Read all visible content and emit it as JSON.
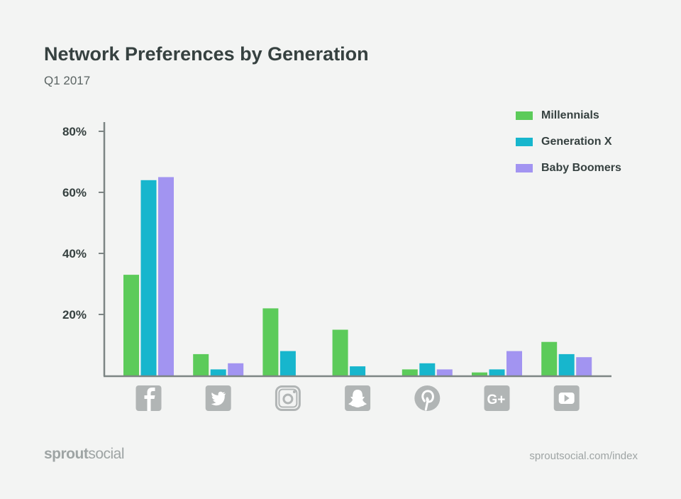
{
  "chart_data": {
    "type": "bar",
    "title": "Network Preferences by Generation",
    "subtitle": "Q1 2017",
    "categories": [
      "Facebook",
      "Twitter",
      "Instagram",
      "Snapchat",
      "Pinterest",
      "Google+",
      "YouTube"
    ],
    "category_icons": [
      "facebook-icon",
      "twitter-icon",
      "instagram-icon",
      "snapchat-icon",
      "pinterest-icon",
      "google-plus-icon",
      "youtube-icon"
    ],
    "series": [
      {
        "name": "Millennials",
        "color": "#5ccb5a",
        "values": [
          33,
          7,
          22,
          15,
          2,
          1,
          11
        ]
      },
      {
        "name": "Generation X",
        "color": "#17b6cd",
        "values": [
          64,
          2,
          8,
          3,
          4,
          2,
          7
        ]
      },
      {
        "name": "Baby Boomers",
        "color": "#a294f1",
        "values": [
          65,
          4,
          0,
          0,
          2,
          8,
          6
        ]
      }
    ],
    "yticks": [
      20,
      40,
      60,
      80
    ],
    "ytick_labels": [
      "20%",
      "40%",
      "60%",
      "80%"
    ],
    "ylim": [
      0,
      80
    ],
    "grid": false,
    "legend_position": "top-right",
    "xlabel": "",
    "ylabel": ""
  },
  "footer": {
    "brand_bold": "sprout",
    "brand_light": "social",
    "url": "sproutsocial.com/index"
  }
}
